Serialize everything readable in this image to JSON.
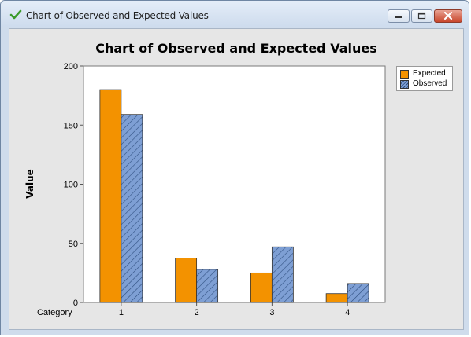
{
  "window": {
    "title": "Chart of Observed and Expected Values",
    "controls": [
      "minimize",
      "maximize",
      "close"
    ]
  },
  "colors": {
    "expected": "#f39200",
    "observed": "#7e9fd4",
    "hatch": "#2f4f80",
    "plot_bg": "#ffffff",
    "panel_bg": "#e6e6e6"
  },
  "chart_data": {
    "type": "bar",
    "title": "Chart of Observed and Expected Values",
    "xlabel": "Category",
    "ylabel": "Value",
    "categories": [
      "1",
      "2",
      "3",
      "4"
    ],
    "series": [
      {
        "name": "Expected",
        "values": [
          180,
          37.5,
          25,
          7.5
        ]
      },
      {
        "name": "Observed",
        "values": [
          159,
          28,
          47,
          16
        ]
      }
    ],
    "ylim": [
      0,
      200
    ],
    "yticks": [
      0,
      50,
      100,
      150,
      200
    ],
    "legend": "top-right",
    "grid": false
  }
}
